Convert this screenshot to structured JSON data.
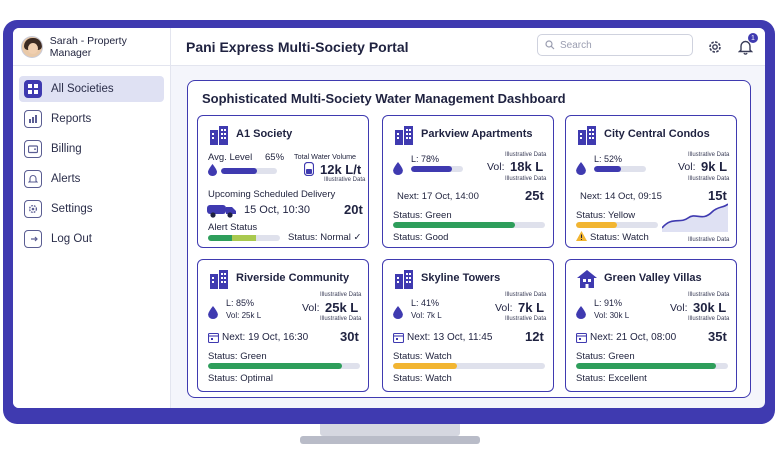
{
  "user": {
    "name": "Sarah - Property Manager"
  },
  "header": {
    "title": "Pani Express Multi-Society Portal"
  },
  "search": {
    "placeholder": "Search"
  },
  "notifications": {
    "count": "1"
  },
  "sidebar": {
    "items": [
      {
        "label": "All Societies",
        "icon": "grid-icon",
        "active": true
      },
      {
        "label": "Reports",
        "icon": "chart-document-icon"
      },
      {
        "label": "Billing",
        "icon": "wallet-icon"
      },
      {
        "label": "Alerts",
        "icon": "bell-icon"
      },
      {
        "label": "Settings",
        "icon": "gear-icon"
      },
      {
        "label": "Log Out",
        "icon": "logout-icon"
      }
    ]
  },
  "dashboard": {
    "title": "Sophisticated Multi-Society Water Management Dashboard"
  },
  "illustrative_label": "Illustrative Data",
  "colors": {
    "accent": "#3f3ab0",
    "green": "#2e9e5b",
    "yellow": "#f2b531",
    "track": "#dfe1ec"
  },
  "societies": {
    "a1": {
      "name": "A1 Society",
      "level_label": "Avg. Level",
      "level_pct": "65%",
      "level_fraction": 0.65,
      "total_label": "Total Water Volume",
      "total_value": "12k L/t",
      "delivery_label": "Upcoming Scheduled Delivery",
      "delivery_date": "15 Oct, 10:30",
      "delivery_qty": "20t",
      "alert_label": "Alert Status",
      "alert_status": "Status: Normal ✓"
    },
    "parkview": {
      "name": "Parkview Apartments",
      "level": "L: 78%",
      "level_fraction": 0.78,
      "vol_label": "Vol:",
      "vol_value": "18k L",
      "next": "Next: 17 Oct, 14:00",
      "qty": "25t",
      "status": "Status: Green",
      "status_fraction": 0.8,
      "footer": "Status: Good"
    },
    "citycentral": {
      "name": "City Central Condos",
      "level": "L: 52%",
      "level_fraction": 0.52,
      "vol_label": "Vol:",
      "vol_value": "9k L",
      "next": "Next: 14 Oct, 09:15",
      "qty": "15t",
      "status": "Status: Yellow",
      "status_fraction": 0.5,
      "footer": "Status: Watch"
    },
    "riverside": {
      "name": "Riverside Community",
      "level": "L: 85%",
      "level_fraction": 0.85,
      "vol_small": "Vol: 25k L",
      "vol_label": "Vol:",
      "vol_value": "25k L",
      "next": "Next: 19 Oct, 16:30",
      "qty": "30t",
      "status": "Status: Green",
      "status_fraction": 0.88,
      "footer": "Status: Optimal"
    },
    "skyline": {
      "name": "Skyline Towers",
      "level": "L: 41%",
      "level_fraction": 0.41,
      "vol_small": "Vol: 7k L",
      "vol_label": "Vol:",
      "vol_value": "7k L",
      "next": "Next: 13 Oct, 11:45",
      "qty": "12t",
      "status": "Status: Watch",
      "status_fraction": 0.42,
      "footer": "Status: Watch"
    },
    "greenvalley": {
      "name": "Green Valley Villas",
      "level": "L: 91%",
      "level_fraction": 0.91,
      "vol_small": "Vol: 30k L",
      "vol_label": "Vol:",
      "vol_value": "30k L",
      "next": "Next: 21 Oct, 08:00",
      "qty": "35t",
      "status": "Status: Green",
      "status_fraction": 0.92,
      "footer": "Status: Excellent"
    }
  }
}
